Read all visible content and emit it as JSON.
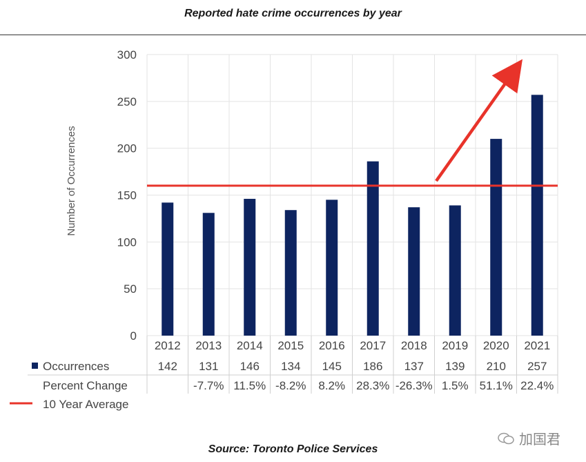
{
  "title": "Reported hate crime occurrences by year",
  "source": "Source: Toronto Police Services",
  "watermark": "加国君",
  "colors": {
    "bar": "#0d2460",
    "average_line": "#e8332a",
    "arrow": "#e8332a",
    "grid": "#e3e3e3",
    "text": "#444444"
  },
  "chart_data": {
    "type": "bar",
    "categories": [
      "2012",
      "2013",
      "2014",
      "2015",
      "2016",
      "2017",
      "2018",
      "2019",
      "2020",
      "2021"
    ],
    "series": [
      {
        "name": "Occurrences",
        "values": [
          142,
          131,
          146,
          134,
          145,
          186,
          137,
          139,
          210,
          257
        ]
      }
    ],
    "percent_change_label": "Percent Change",
    "percent_change": [
      "",
      "-7.7%",
      "11.5%",
      "-8.2%",
      "8.2%",
      "28.3%",
      "-26.3%",
      "1.5%",
      "51.1%",
      "22.4%"
    ],
    "average_line": {
      "name": "10 Year Average",
      "value": 160
    },
    "ylabel": "Number of Occurrences",
    "xlabel": "",
    "ylim": [
      0,
      300
    ],
    "yticks": [
      0,
      50,
      100,
      150,
      200,
      250,
      300
    ],
    "grid": true,
    "legend": "data-table-bottom",
    "annotation": "red arrow pointing upward from the average line toward the top right"
  }
}
